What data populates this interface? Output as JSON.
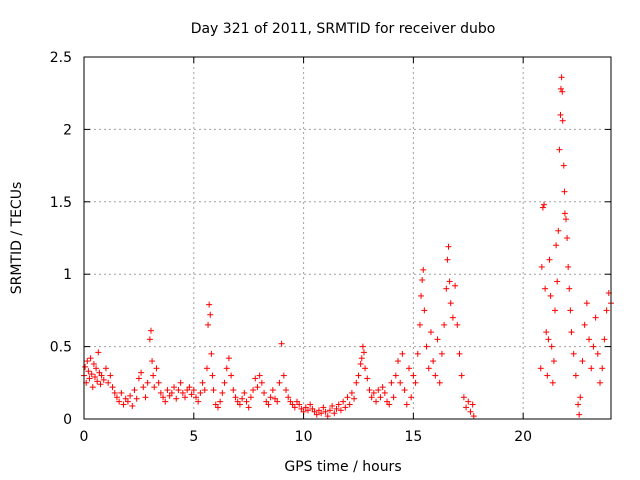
{
  "chart_data": {
    "type": "scatter",
    "title": "Day 321 of 2011, SRMTID for receiver dubo",
    "xlabel": "GPS time / hours",
    "ylabel": "SRMTID / TECUs",
    "xlim": [
      0,
      24
    ],
    "ylim": [
      0,
      2.5
    ],
    "xticks": [
      0,
      5,
      10,
      15,
      20
    ],
    "yticks": [
      0,
      0.5,
      1,
      1.5,
      2,
      2.5
    ],
    "xtick_labels": [
      "0",
      "5",
      "10",
      "15",
      "20"
    ],
    "ytick_labels": [
      "0",
      "0.5",
      "1",
      "1.5",
      "2",
      "2.5"
    ],
    "grid": true,
    "marker": "+",
    "color": "#ff0000",
    "series": [
      {
        "name": "SRMTID",
        "points": [
          [
            0.0,
            0.3
          ],
          [
            0.05,
            0.36
          ],
          [
            0.1,
            0.25
          ],
          [
            0.15,
            0.4
          ],
          [
            0.2,
            0.33
          ],
          [
            0.25,
            0.28
          ],
          [
            0.3,
            0.42
          ],
          [
            0.35,
            0.31
          ],
          [
            0.4,
            0.22
          ],
          [
            0.45,
            0.38
          ],
          [
            0.5,
            0.29
          ],
          [
            0.55,
            0.35
          ],
          [
            0.6,
            0.26
          ],
          [
            0.65,
            0.46
          ],
          [
            0.7,
            0.32
          ],
          [
            0.75,
            0.24
          ],
          [
            0.8,
            0.3
          ],
          [
            0.9,
            0.27
          ],
          [
            1.0,
            0.35
          ],
          [
            1.1,
            0.25
          ],
          [
            1.2,
            0.3
          ],
          [
            1.3,
            0.22
          ],
          [
            1.4,
            0.18
          ],
          [
            1.5,
            0.15
          ],
          [
            1.6,
            0.12
          ],
          [
            1.7,
            0.18
          ],
          [
            1.8,
            0.1
          ],
          [
            1.9,
            0.14
          ],
          [
            2.0,
            0.12
          ],
          [
            2.1,
            0.16
          ],
          [
            2.2,
            0.09
          ],
          [
            2.3,
            0.2
          ],
          [
            2.4,
            0.14
          ],
          [
            2.5,
            0.28
          ],
          [
            2.6,
            0.32
          ],
          [
            2.7,
            0.22
          ],
          [
            2.8,
            0.15
          ],
          [
            2.9,
            0.25
          ],
          [
            3.0,
            0.55
          ],
          [
            3.05,
            0.61
          ],
          [
            3.1,
            0.4
          ],
          [
            3.15,
            0.3
          ],
          [
            3.2,
            0.22
          ],
          [
            3.3,
            0.35
          ],
          [
            3.4,
            0.25
          ],
          [
            3.5,
            0.18
          ],
          [
            3.6,
            0.15
          ],
          [
            3.7,
            0.12
          ],
          [
            3.8,
            0.2
          ],
          [
            3.9,
            0.16
          ],
          [
            4.0,
            0.18
          ],
          [
            4.1,
            0.22
          ],
          [
            4.2,
            0.14
          ],
          [
            4.3,
            0.2
          ],
          [
            4.4,
            0.25
          ],
          [
            4.5,
            0.18
          ],
          [
            4.6,
            0.15
          ],
          [
            4.7,
            0.2
          ],
          [
            4.8,
            0.22
          ],
          [
            4.9,
            0.17
          ],
          [
            5.0,
            0.2
          ],
          [
            5.1,
            0.15
          ],
          [
            5.2,
            0.12
          ],
          [
            5.3,
            0.18
          ],
          [
            5.4,
            0.25
          ],
          [
            5.5,
            0.2
          ],
          [
            5.6,
            0.35
          ],
          [
            5.65,
            0.65
          ],
          [
            5.7,
            0.79
          ],
          [
            5.75,
            0.72
          ],
          [
            5.8,
            0.45
          ],
          [
            5.85,
            0.3
          ],
          [
            5.9,
            0.2
          ],
          [
            6.0,
            0.1
          ],
          [
            6.1,
            0.08
          ],
          [
            6.2,
            0.12
          ],
          [
            6.3,
            0.18
          ],
          [
            6.4,
            0.25
          ],
          [
            6.5,
            0.35
          ],
          [
            6.6,
            0.42
          ],
          [
            6.7,
            0.3
          ],
          [
            6.8,
            0.2
          ],
          [
            6.9,
            0.15
          ],
          [
            7.0,
            0.12
          ],
          [
            7.1,
            0.1
          ],
          [
            7.2,
            0.14
          ],
          [
            7.3,
            0.18
          ],
          [
            7.4,
            0.12
          ],
          [
            7.5,
            0.08
          ],
          [
            7.6,
            0.15
          ],
          [
            7.7,
            0.2
          ],
          [
            7.8,
            0.28
          ],
          [
            7.9,
            0.22
          ],
          [
            8.0,
            0.3
          ],
          [
            8.1,
            0.25
          ],
          [
            8.2,
            0.18
          ],
          [
            8.3,
            0.12
          ],
          [
            8.4,
            0.1
          ],
          [
            8.5,
            0.15
          ],
          [
            8.6,
            0.2
          ],
          [
            8.7,
            0.14
          ],
          [
            8.8,
            0.12
          ],
          [
            8.9,
            0.25
          ],
          [
            9.0,
            0.52
          ],
          [
            9.1,
            0.3
          ],
          [
            9.2,
            0.2
          ],
          [
            9.3,
            0.15
          ],
          [
            9.4,
            0.12
          ],
          [
            9.5,
            0.1
          ],
          [
            9.6,
            0.08
          ],
          [
            9.7,
            0.12
          ],
          [
            9.8,
            0.1
          ],
          [
            9.9,
            0.07
          ],
          [
            10.0,
            0.05
          ],
          [
            10.1,
            0.08
          ],
          [
            10.2,
            0.06
          ],
          [
            10.3,
            0.1
          ],
          [
            10.4,
            0.07
          ],
          [
            10.5,
            0.05
          ],
          [
            10.6,
            0.03
          ],
          [
            10.7,
            0.06
          ],
          [
            10.8,
            0.04
          ],
          [
            10.9,
            0.08
          ],
          [
            11.0,
            0.05
          ],
          [
            11.1,
            0.02
          ],
          [
            11.2,
            0.06
          ],
          [
            11.3,
            0.09
          ],
          [
            11.4,
            0.04
          ],
          [
            11.5,
            0.07
          ],
          [
            11.6,
            0.1
          ],
          [
            11.7,
            0.06
          ],
          [
            11.8,
            0.12
          ],
          [
            11.9,
            0.08
          ],
          [
            12.0,
            0.15
          ],
          [
            12.1,
            0.1
          ],
          [
            12.2,
            0.18
          ],
          [
            12.3,
            0.14
          ],
          [
            12.4,
            0.25
          ],
          [
            12.5,
            0.3
          ],
          [
            12.6,
            0.38
          ],
          [
            12.65,
            0.42
          ],
          [
            12.7,
            0.5
          ],
          [
            12.75,
            0.46
          ],
          [
            12.8,
            0.35
          ],
          [
            12.9,
            0.28
          ],
          [
            13.0,
            0.2
          ],
          [
            13.1,
            0.15
          ],
          [
            13.2,
            0.18
          ],
          [
            13.3,
            0.12
          ],
          [
            13.4,
            0.2
          ],
          [
            13.5,
            0.15
          ],
          [
            13.6,
            0.22
          ],
          [
            13.7,
            0.18
          ],
          [
            13.8,
            0.12
          ],
          [
            13.9,
            0.1
          ],
          [
            14.0,
            0.25
          ],
          [
            14.1,
            0.15
          ],
          [
            14.2,
            0.3
          ],
          [
            14.3,
            0.4
          ],
          [
            14.4,
            0.25
          ],
          [
            14.5,
            0.45
          ],
          [
            14.6,
            0.2
          ],
          [
            14.7,
            0.1
          ],
          [
            14.8,
            0.35
          ],
          [
            14.9,
            0.15
          ],
          [
            15.0,
            0.3
          ],
          [
            15.1,
            0.25
          ],
          [
            15.2,
            0.45
          ],
          [
            15.3,
            0.65
          ],
          [
            15.35,
            0.85
          ],
          [
            15.4,
            0.96
          ],
          [
            15.45,
            1.03
          ],
          [
            15.5,
            0.75
          ],
          [
            15.6,
            0.5
          ],
          [
            15.7,
            0.35
          ],
          [
            15.8,
            0.6
          ],
          [
            15.9,
            0.4
          ],
          [
            16.0,
            0.3
          ],
          [
            16.1,
            0.55
          ],
          [
            16.2,
            0.25
          ],
          [
            16.3,
            0.45
          ],
          [
            16.4,
            0.65
          ],
          [
            16.5,
            0.9
          ],
          [
            16.55,
            1.1
          ],
          [
            16.6,
            1.19
          ],
          [
            16.65,
            0.95
          ],
          [
            16.7,
            0.8
          ],
          [
            16.8,
            0.7
          ],
          [
            16.9,
            0.92
          ],
          [
            17.0,
            0.65
          ],
          [
            17.1,
            0.45
          ],
          [
            17.2,
            0.3
          ],
          [
            17.3,
            0.15
          ],
          [
            17.4,
            0.08
          ],
          [
            17.5,
            0.12
          ],
          [
            17.6,
            0.05
          ],
          [
            17.7,
            0.1
          ],
          [
            17.75,
            0.02
          ],
          [
            20.8,
            0.35
          ],
          [
            20.85,
            1.05
          ],
          [
            20.9,
            1.46
          ],
          [
            20.95,
            1.48
          ],
          [
            21.0,
            0.9
          ],
          [
            21.05,
            0.6
          ],
          [
            21.1,
            0.3
          ],
          [
            21.15,
            0.55
          ],
          [
            21.2,
            1.1
          ],
          [
            21.25,
            0.85
          ],
          [
            21.3,
            0.5
          ],
          [
            21.35,
            0.25
          ],
          [
            21.4,
            0.4
          ],
          [
            21.45,
            0.75
          ],
          [
            21.5,
            1.2
          ],
          [
            21.55,
            0.95
          ],
          [
            21.6,
            1.3
          ],
          [
            21.65,
            1.86
          ],
          [
            21.7,
            2.1
          ],
          [
            21.72,
            2.28
          ],
          [
            21.75,
            2.36
          ],
          [
            21.78,
            2.26
          ],
          [
            21.8,
            2.06
          ],
          [
            21.85,
            1.75
          ],
          [
            21.88,
            1.57
          ],
          [
            21.9,
            1.42
          ],
          [
            21.95,
            1.38
          ],
          [
            22.0,
            1.25
          ],
          [
            22.05,
            1.05
          ],
          [
            22.1,
            0.9
          ],
          [
            22.15,
            0.75
          ],
          [
            22.2,
            0.6
          ],
          [
            22.3,
            0.45
          ],
          [
            22.4,
            0.3
          ],
          [
            22.5,
            0.1
          ],
          [
            22.55,
            0.03
          ],
          [
            22.6,
            0.15
          ],
          [
            22.7,
            0.4
          ],
          [
            22.8,
            0.65
          ],
          [
            22.9,
            0.8
          ],
          [
            23.0,
            0.55
          ],
          [
            23.1,
            0.35
          ],
          [
            23.2,
            0.5
          ],
          [
            23.3,
            0.7
          ],
          [
            23.4,
            0.45
          ],
          [
            23.5,
            0.25
          ],
          [
            23.6,
            0.35
          ],
          [
            23.7,
            0.55
          ],
          [
            23.8,
            0.75
          ],
          [
            23.9,
            0.87
          ],
          [
            24.0,
            0.8
          ]
        ]
      }
    ]
  }
}
